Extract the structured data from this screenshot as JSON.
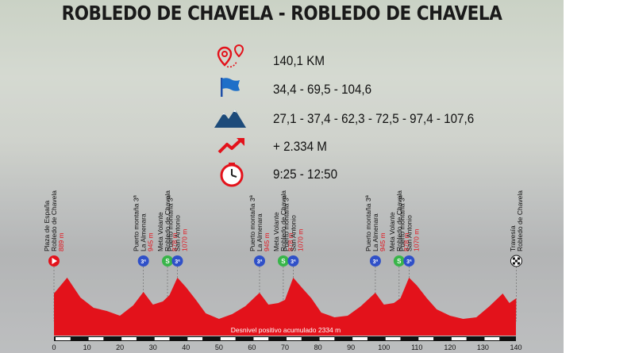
{
  "title": "ROBLEDO DE CHAVELA - ROBLEDO DE CHAVELA",
  "stats": [
    {
      "icon": "distance-pin-icon",
      "text": "140,1 KM"
    },
    {
      "icon": "flag-icon",
      "text": "34,4 - 69,5 - 104,6"
    },
    {
      "icon": "mountain-icon",
      "text": "27,1 - 37,4 - 62,3 - 72,5 - 97,4 - 107,6"
    },
    {
      "icon": "elevation-gain-arrow-icon",
      "text": "+ 2.334 M"
    },
    {
      "icon": "clock-icon",
      "text": "9:25 - 12:50"
    }
  ],
  "profile": {
    "footer": "Desnivel positivo acumulado 2334 m",
    "axis_ticks": [
      "0",
      "10",
      "20",
      "30",
      "40",
      "50",
      "60",
      "70",
      "80",
      "90",
      "100",
      "110",
      "120",
      "130",
      "140"
    ],
    "waypoints": [
      {
        "km": 0,
        "kind": "start",
        "lines": [
          "Plaza de España",
          "Robledo de Chavela"
        ],
        "elev": "889 m"
      },
      {
        "km": 27.1,
        "kind": "mountain",
        "lines": [
          "Puerto montaña 3ª",
          "La Almenara"
        ],
        "elev": "945 m"
      },
      {
        "km": 34.4,
        "kind": "sprint",
        "lines": [
          "Meta Volante",
          "Robledo de Chavela"
        ],
        "elev": "878 m"
      },
      {
        "km": 37.4,
        "kind": "mountain",
        "lines": [
          "Puerto montaña 3ª",
          "San Antonio"
        ],
        "elev": "1070 m"
      },
      {
        "km": 62.3,
        "kind": "mountain",
        "lines": [
          "Puerto montaña 3ª",
          "La Almenara"
        ],
        "elev": "945 m"
      },
      {
        "km": 69.5,
        "kind": "sprint",
        "lines": [
          "Meta Volante",
          "Robledo de Chavela"
        ],
        "elev": "878 m"
      },
      {
        "km": 72.5,
        "kind": "mountain",
        "lines": [
          "Puerto montaña 3ª",
          "San Antonio"
        ],
        "elev": "1070 m"
      },
      {
        "km": 97.4,
        "kind": "mountain",
        "lines": [
          "Puerto montaña 3ª",
          "La Almenara"
        ],
        "elev": "945 m"
      },
      {
        "km": 104.6,
        "kind": "sprint",
        "lines": [
          "Meta Volante",
          "Robledo de Chavela"
        ],
        "elev": "878 m"
      },
      {
        "km": 107.6,
        "kind": "mountain",
        "lines": [
          "Puerto montaña 3ª",
          "San Antonio"
        ],
        "elev": "1070 m"
      },
      {
        "km": 140.1,
        "kind": "finish",
        "lines": [
          "Travesía",
          "Robledo de Chavela"
        ],
        "elev": ""
      }
    ],
    "marker_symbols": {
      "mountain": "3ª",
      "sprint": "S"
    },
    "colors": {
      "fill": "#e3121b",
      "marker_mountain": "#2f50c8",
      "marker_sprint": "#39b54a",
      "label_elev": "#e3121b"
    }
  }
}
